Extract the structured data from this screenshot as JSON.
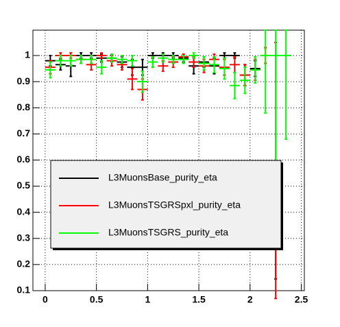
{
  "chart_data": {
    "type": "errorbar",
    "x": [
      0.05,
      0.15,
      0.25,
      0.35,
      0.45,
      0.55,
      0.65,
      0.75,
      0.85,
      0.95,
      1.05,
      1.15,
      1.25,
      1.35,
      1.45,
      1.55,
      1.65,
      1.75,
      1.85,
      1.95,
      2.05,
      2.15,
      2.25,
      2.35
    ],
    "xerr": 0.05,
    "series": [
      {
        "name": "L3MuonsBase_purity_eta",
        "color": "#000000",
        "values": [
          0.98,
          0.965,
          0.96,
          1.0,
          1.0,
          0.99,
          0.99,
          0.975,
          0.955,
          0.955,
          1.0,
          1.0,
          1.0,
          0.99,
          0.96,
          0.975,
          0.96,
          1.0,
          1.0,
          0.925,
          0.95,
          null,
          0.335,
          null
        ],
        "errors": [
          0.02,
          0.02,
          0.04,
          0.01,
          0.01,
          0.015,
          0.015,
          0.02,
          0.03,
          0.03,
          0.01,
          0.01,
          0.01,
          0.015,
          0.03,
          0.02,
          0.03,
          0.01,
          0.01,
          0.04,
          0.03,
          null,
          0.19,
          null
        ]
      },
      {
        "name": "L3MuonsTSGRSpxl_purity_eta",
        "color": "#ff0000",
        "values": [
          0.955,
          1.0,
          1.0,
          0.985,
          0.965,
          1.0,
          0.98,
          0.965,
          0.91,
          0.87,
          0.975,
          0.96,
          0.975,
          0.995,
          0.975,
          0.96,
          0.985,
          0.955,
          0.965,
          0.925,
          0.945,
          1.0,
          0.56,
          null
        ],
        "errors": [
          0.025,
          0.01,
          0.01,
          0.015,
          0.02,
          0.01,
          0.02,
          0.02,
          0.04,
          0.04,
          0.02,
          0.02,
          0.02,
          0.01,
          0.02,
          0.025,
          0.02,
          0.03,
          0.03,
          0.04,
          0.04,
          0.03,
          0.49,
          null
        ]
      },
      {
        "name": "L3MuonsTSGRS_purity_eta",
        "color": "#00ff00",
        "values": [
          0.945,
          0.98,
          0.98,
          0.985,
          0.985,
          0.955,
          0.99,
          0.985,
          0.98,
          0.9,
          0.975,
          0.99,
          0.985,
          0.985,
          1.0,
          0.97,
          0.965,
          0.95,
          0.885,
          0.905,
          0.945,
          1.0,
          1.0,
          1.0
        ],
        "errors": [
          0.03,
          0.02,
          0.02,
          0.015,
          0.015,
          0.025,
          0.015,
          0.015,
          0.02,
          0.04,
          0.02,
          0.015,
          0.015,
          0.015,
          0.01,
          0.025,
          0.03,
          0.04,
          0.05,
          0.05,
          0.05,
          0.22,
          0.65,
          0.32
        ]
      }
    ],
    "xlim": [
      -0.12,
      2.53
    ],
    "xticks": [
      0,
      0.5,
      1,
      1.5,
      2,
      2.5
    ],
    "ylim": [
      0.1,
      1.097
    ],
    "yticks": [
      0.1,
      0.2,
      0.3,
      0.4,
      0.5,
      0.6,
      0.7,
      0.8,
      0.9,
      1
    ],
    "grid": true,
    "legend": "lower-left"
  }
}
